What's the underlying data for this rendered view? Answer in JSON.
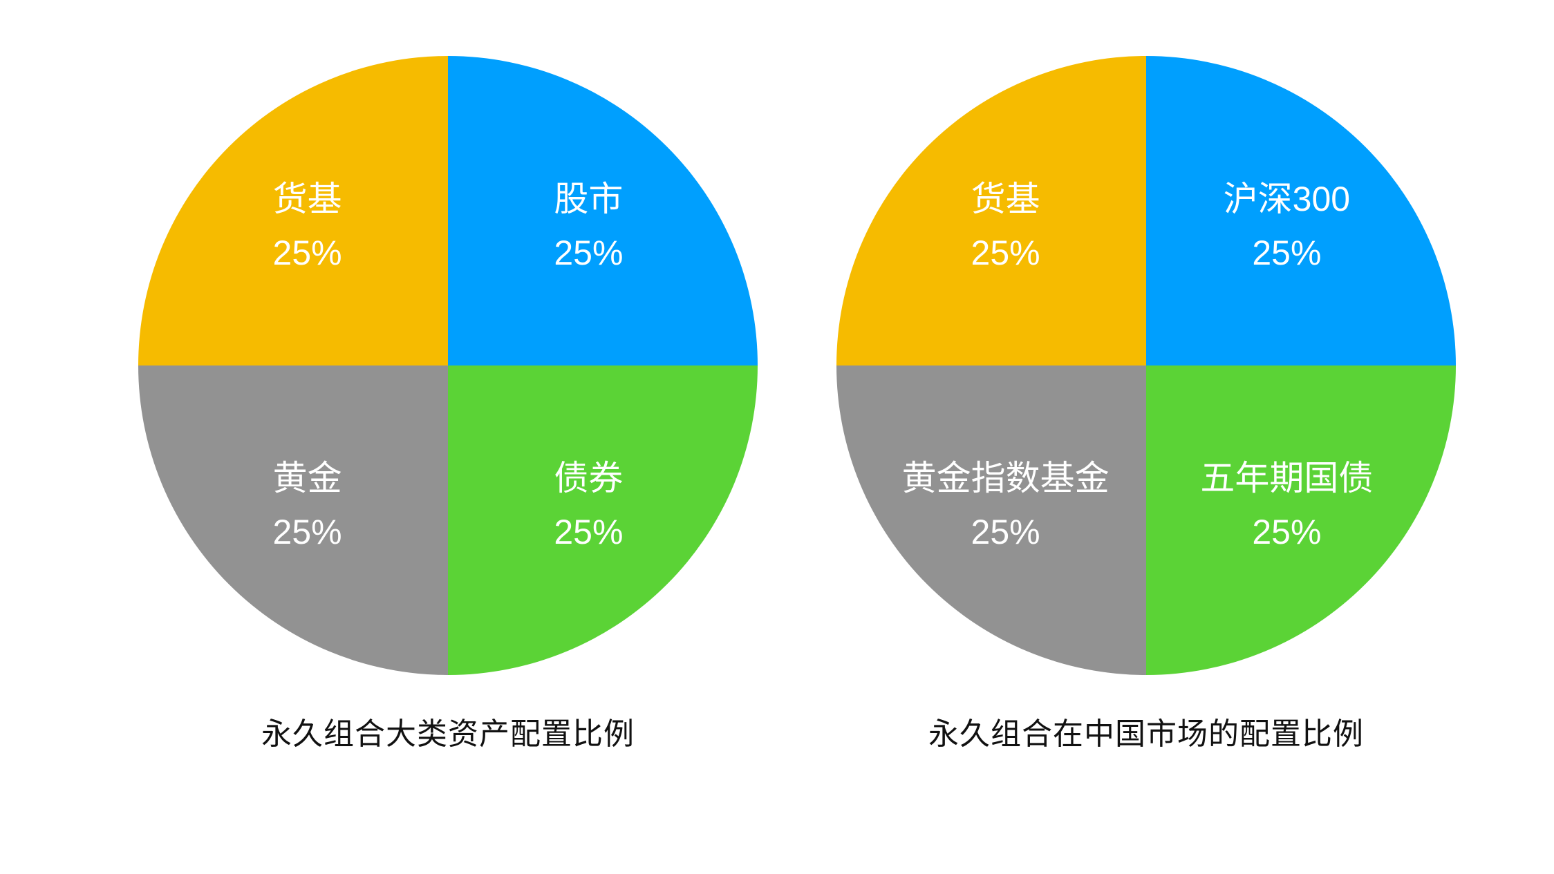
{
  "colors": {
    "background": "#FFFFFF",
    "slice_text": "#FFFFFF",
    "caption_text": "#111111",
    "orange": "#F6BB00",
    "blue": "#009FFE",
    "gray": "#929292",
    "green": "#5BD336"
  },
  "chart_data": [
    {
      "type": "pie",
      "title": "永久组合大类资产配置比例",
      "legend_position": "none",
      "labels_inside": true,
      "slices": [
        {
          "label": "股市",
          "value": 25,
          "percent_label": "25%",
          "color": "#009FFE",
          "position": "top-right"
        },
        {
          "label": "债券",
          "value": 25,
          "percent_label": "25%",
          "color": "#5BD336",
          "position": "bottom-right"
        },
        {
          "label": "黄金",
          "value": 25,
          "percent_label": "25%",
          "color": "#929292",
          "position": "bottom-left"
        },
        {
          "label": "货基",
          "value": 25,
          "percent_label": "25%",
          "color": "#F6BB00",
          "position": "top-left"
        }
      ]
    },
    {
      "type": "pie",
      "title": "永久组合在中国市场的配置比例",
      "legend_position": "none",
      "labels_inside": true,
      "slices": [
        {
          "label": "沪深300",
          "value": 25,
          "percent_label": "25%",
          "color": "#009FFE",
          "position": "top-right"
        },
        {
          "label": "五年期国债",
          "value": 25,
          "percent_label": "25%",
          "color": "#5BD336",
          "position": "bottom-right"
        },
        {
          "label": "黄金指数基金",
          "value": 25,
          "percent_label": "25%",
          "color": "#929292",
          "position": "bottom-left"
        },
        {
          "label": "货基",
          "value": 25,
          "percent_label": "25%",
          "color": "#F6BB00",
          "position": "top-left"
        }
      ]
    }
  ]
}
